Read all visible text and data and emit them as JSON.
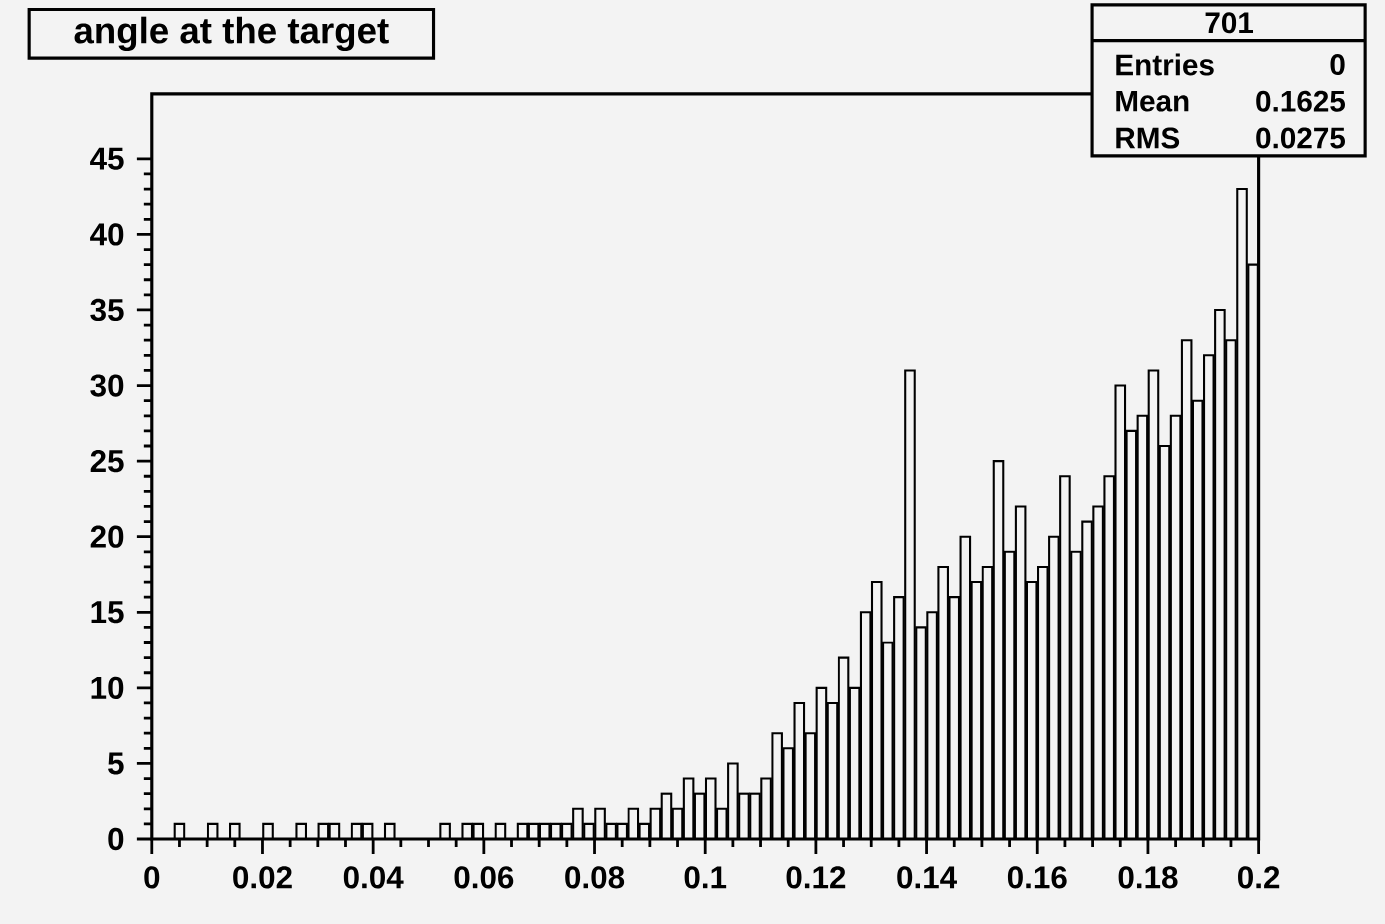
{
  "chart_data": {
    "type": "histogram",
    "title": "angle at the target",
    "annotations": [
      "701",
      "Entries",
      "0",
      "Mean",
      "0.1625",
      "RMS",
      "0.0275"
    ],
    "color": "#000000",
    "bins": [
      0,
      0.002,
      0.004,
      0.006,
      0.008,
      0.01,
      0.012,
      0.014,
      0.016,
      0.018,
      0.02,
      0.022,
      0.024,
      0.026,
      0.028,
      0.03,
      0.032,
      0.034,
      0.036,
      0.038,
      0.04,
      0.042,
      0.044,
      0.046,
      0.048,
      0.05,
      0.052,
      0.054,
      0.056,
      0.058,
      0.06,
      0.062,
      0.064,
      0.066,
      0.068,
      0.07,
      0.072,
      0.074,
      0.076,
      0.078,
      0.08,
      0.082,
      0.084,
      0.086,
      0.088,
      0.09,
      0.092,
      0.094,
      0.096,
      0.098,
      0.1,
      0.102,
      0.104,
      0.106,
      0.108,
      0.11,
      0.112,
      0.114,
      0.116,
      0.118,
      0.12,
      0.122,
      0.124,
      0.126,
      0.128,
      0.13,
      0.132,
      0.134,
      0.136,
      0.138,
      0.14,
      0.142,
      0.144,
      0.146,
      0.148,
      0.15,
      0.152,
      0.154,
      0.156,
      0.158,
      0.16,
      0.162,
      0.164,
      0.166,
      0.168,
      0.17,
      0.172,
      0.174,
      0.176,
      0.178,
      0.18,
      0.182,
      0.184,
      0.186,
      0.188,
      0.19,
      0.192,
      0.194,
      0.196,
      0.198,
      0.2
    ],
    "values": [
      0,
      0,
      1,
      0,
      0,
      1,
      0,
      1,
      0,
      0,
      1,
      0,
      0,
      1,
      0,
      1,
      1,
      0,
      1,
      1,
      0,
      1,
      0,
      0,
      0,
      0,
      1,
      0,
      1,
      1,
      0,
      1,
      0,
      1,
      1,
      1,
      1,
      1,
      2,
      1,
      2,
      1,
      1,
      2,
      1,
      2,
      3,
      2,
      4,
      3,
      4,
      2,
      5,
      3,
      3,
      4,
      7,
      6,
      9,
      7,
      10,
      9,
      12,
      10,
      15,
      17,
      13,
      16,
      31,
      14,
      15,
      18,
      16,
      20,
      17,
      18,
      25,
      19,
      22,
      17,
      18,
      20,
      24,
      19,
      21,
      22,
      24,
      30,
      27,
      28,
      31,
      26,
      28,
      33,
      29,
      32,
      35,
      33,
      43,
      38
    ],
    "xlim": [
      0,
      0.2
    ],
    "ylim": [
      0,
      49.3
    ],
    "xticks": [
      0,
      {
        "value": 0.02,
        "label": "0.02"
      },
      {
        "value": 0.04,
        "label": "0.04"
      },
      {
        "value": 0.06,
        "label": "0.06"
      },
      {
        "value": 0.08,
        "label": "0.08"
      },
      {
        "value": 0.1,
        "label": "0.1"
      },
      {
        "value": 0.12,
        "label": "0.12"
      },
      {
        "value": 0.14,
        "label": "0.14"
      },
      {
        "value": 0.16,
        "label": "0.16"
      },
      {
        "value": 0.18,
        "label": "0.18"
      },
      {
        "value": 0.2,
        "label": "0.2"
      }
    ],
    "yticks": [
      0,
      5,
      10,
      15,
      20,
      25,
      30,
      35,
      40,
      45
    ]
  }
}
